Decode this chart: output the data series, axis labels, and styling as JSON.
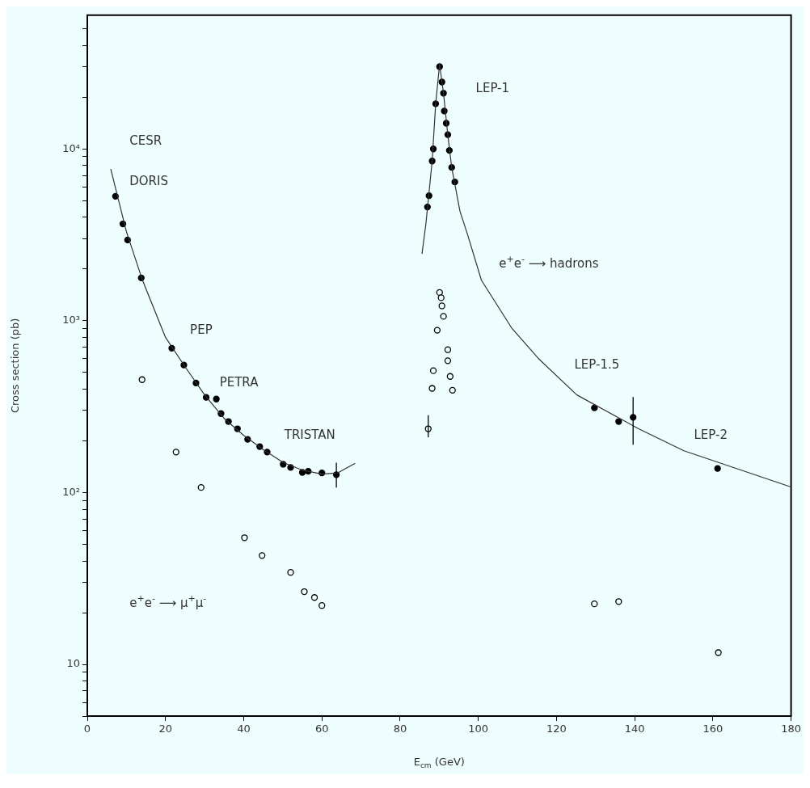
{
  "chart_data": {
    "type": "scatter",
    "xlabel": "E$_{cm}$ (GeV)",
    "ylabel": "Cross section (pb)",
    "log": "y",
    "grid": false,
    "legend": false,
    "xlim": [
      0,
      180
    ],
    "xticks": [
      0,
      20,
      40,
      60,
      80,
      100,
      120,
      140,
      160,
      180
    ],
    "ylim": [
      5,
      60000
    ],
    "yticks": [
      {
        "value": 5,
        "label": null
      },
      {
        "value": 6,
        "label": null
      },
      {
        "value": 7,
        "label": null
      },
      {
        "value": 8,
        "label": null
      },
      {
        "value": 9,
        "label": null
      },
      10,
      {
        "value": 20,
        "label": null
      },
      {
        "value": 30,
        "label": null
      },
      {
        "value": 40,
        "label": null
      },
      {
        "value": 50,
        "label": null
      },
      {
        "value": 60,
        "label": null
      },
      {
        "value": 70,
        "label": null
      },
      {
        "value": 80,
        "label": null
      },
      {
        "value": 90,
        "label": null
      },
      {
        "value": 100,
        "label": "10²"
      },
      {
        "value": 200,
        "label": null
      },
      {
        "value": 300,
        "label": null
      },
      {
        "value": 400,
        "label": null
      },
      {
        "value": 500,
        "label": null
      },
      {
        "value": 600,
        "label": null
      },
      {
        "value": 700,
        "label": null
      },
      {
        "value": 800,
        "label": null
      },
      {
        "value": 900,
        "label": null
      },
      {
        "value": 1000,
        "label": "10³"
      },
      {
        "value": 2000,
        "label": null
      },
      {
        "value": 3000,
        "label": null
      },
      {
        "value": 4000,
        "label": null
      },
      {
        "value": 5000,
        "label": null
      },
      {
        "value": 6000,
        "label": null
      },
      {
        "value": 7000,
        "label": null
      },
      {
        "value": 8000,
        "label": null
      },
      {
        "value": 9000,
        "label": null
      },
      {
        "value": 10000,
        "label": "10⁴"
      },
      {
        "value": 20000,
        "label": null
      },
      {
        "value": 30000,
        "label": null
      },
      {
        "value": 40000,
        "label": null
      },
      {
        "value": 50000,
        "label": null
      }
    ],
    "series": [
      {
        "type": "line",
        "color": "#333333",
        "marker": "none",
        "line_style": "solid",
        "x": [
          6,
          10,
          14,
          20,
          25,
          30,
          35,
          40,
          45,
          50,
          55,
          60,
          64,
          68.5,
          77,
          85.6,
          86.6,
          88.2,
          89.1,
          90.1,
          91.1,
          92.2,
          93.2,
          95.3,
          97.3,
          100.8,
          108.5,
          115.3,
          125.2,
          141,
          152.6,
          179.8
        ],
        "values": [
          7640,
          3300,
          1750,
          800,
          540,
          370,
          270,
          215,
          178,
          150,
          135,
          128,
          130,
          148,
          null,
          2450,
          3660,
          8500,
          18300,
          31000,
          21100,
          12100,
          7800,
          4350,
          3150,
          1720,
          910,
          605,
          370,
          235,
          175,
          108
        ]
      },
      {
        "color": "#000000",
        "marker": "circle",
        "x": [
          7.2,
          9.1,
          10.3,
          13.8,
          21.6,
          24.7,
          27.8,
          30.4,
          33,
          34.2,
          36.1,
          38.4,
          41,
          44.1,
          46,
          50.1,
          52,
          55,
          56.5,
          60,
          63.7,
          87,
          87.4,
          88.2,
          88.5,
          89.1,
          90.1,
          90.7,
          91.1,
          91.3,
          91.8,
          92.2,
          92.6,
          93.2,
          94,
          129.7,
          135.9,
          139.6,
          161.2
        ],
        "values": [
          5300,
          3660,
          2950,
          1775,
          692,
          552,
          434,
          358,
          350,
          288,
          259,
          235,
          204,
          185,
          172,
          146,
          140,
          131,
          133,
          130,
          127,
          4590,
          5340,
          8500,
          10000,
          18300,
          30100,
          24500,
          21100,
          16600,
          14100,
          12100,
          9800,
          7800,
          6420,
          311,
          259,
          274,
          138
        ],
        "errors": [
          null,
          null,
          null,
          null,
          null,
          null,
          null,
          null,
          null,
          null,
          null,
          null,
          null,
          null,
          null,
          null,
          null,
          null,
          null,
          null,
          [
            107,
            149
          ],
          null,
          null,
          null,
          null,
          null,
          null,
          null,
          null,
          null,
          null,
          null,
          null,
          null,
          null,
          null,
          null,
          [
            190,
            360
          ],
          null
        ]
      },
      {
        "color": "#000000",
        "marker": "circle",
        "x": [
          14,
          22.7,
          29.1,
          40.2,
          44.7,
          52,
          55.5,
          58.1,
          60,
          87.2,
          88.2,
          88.5,
          89.5,
          90.1,
          90.5,
          90.7,
          91.1,
          92.2,
          92.2,
          92.8,
          93.4,
          129.7,
          135.9,
          161.4
        ],
        "values": [
          454,
          172,
          107,
          54.6,
          43,
          34.3,
          26.5,
          24.5,
          22,
          235,
          404,
          512,
          880,
          1460,
          1360,
          1220,
          1060,
          678,
          585,
          474,
          394,
          22.5,
          23.2,
          11.7
        ],
        "errors": [
          null,
          null,
          null,
          null,
          null,
          null,
          null,
          null,
          null,
          [
            210,
            282
          ],
          null,
          null,
          null,
          null,
          null,
          null,
          null,
          null,
          null,
          null,
          null,
          null,
          null,
          null
        ]
      }
    ],
    "annotations": [
      "CESR",
      "DORIS",
      "PEP",
      "PETRA",
      "TRISTAN",
      "LEP-1",
      "e$^{+}$e$^{-}$ ⟶ hadrons",
      "LEP-1.5",
      "LEP-2",
      "e$^{+}$e$^{-}$ ⟶ μ$^{+}$μ$^{-}$"
    ]
  }
}
